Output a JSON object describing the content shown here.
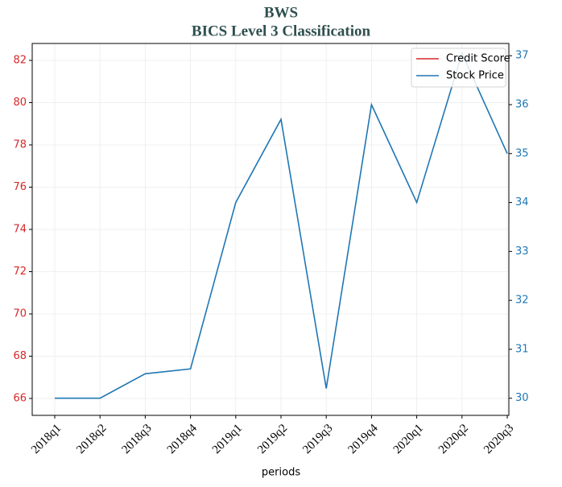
{
  "chart_data": {
    "type": "line",
    "title": "BWS",
    "subtitle": "BICS Level 3 Classification",
    "x_label": "periods",
    "categories": [
      "2018q1",
      "2018q2",
      "2018q3",
      "2018q4",
      "2019q1",
      "2019q2",
      "2019q3",
      "2019q4",
      "2020q1",
      "2020q2",
      "2020q3"
    ],
    "series": [
      {
        "name": "Credit Score",
        "color": "#d62728",
        "values": [
          null,
          null,
          null,
          null,
          null,
          null,
          null,
          null,
          null,
          null,
          null
        ]
      },
      {
        "name": "Stock Price",
        "color": "#1f77b4",
        "axis": "y2",
        "values": [
          30.0,
          30.0,
          30.5,
          30.6,
          34.0,
          35.7,
          30.2,
          36.0,
          34.0,
          37.05,
          35.0
        ]
      }
    ],
    "ylim": [
      65.2,
      82.8
    ],
    "yticks": [
      66,
      68,
      70,
      72,
      74,
      76,
      78,
      80,
      82
    ],
    "y2lim": [
      29.65,
      37.25
    ],
    "y2ticks": [
      30,
      31,
      32,
      33,
      34,
      35,
      36,
      37
    ],
    "ycolor": "#d62728",
    "y2color": "#1f77b4",
    "grid": true,
    "legend": "upper right"
  }
}
